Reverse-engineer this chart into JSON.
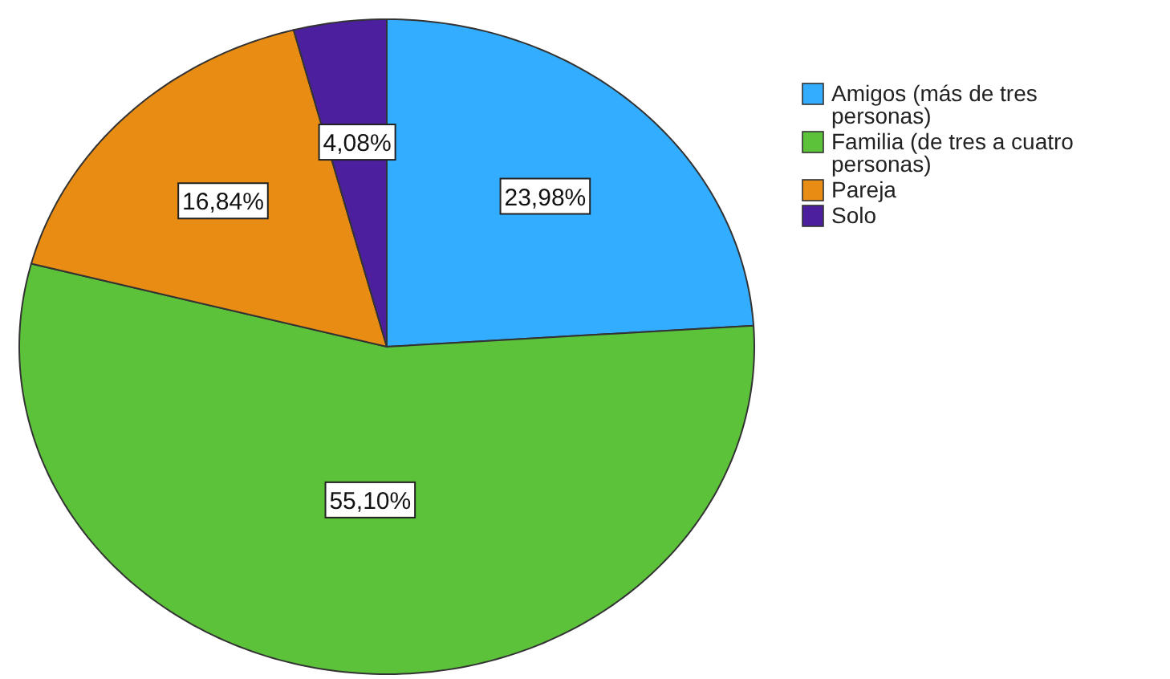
{
  "chart_data": {
    "type": "pie",
    "categories": [
      "Amigos (más de tres personas)",
      "Familia (de tres a cuatro personas)",
      "Pareja",
      "Solo"
    ],
    "values": [
      23.98,
      55.1,
      16.84,
      4.08
    ],
    "colors": [
      "#33adff",
      "#5cc23a",
      "#e88c14",
      "#4b1f9e"
    ],
    "value_labels": [
      "23,98%",
      "55,10%",
      "16,84%",
      "4,08%"
    ],
    "legend": "right"
  }
}
